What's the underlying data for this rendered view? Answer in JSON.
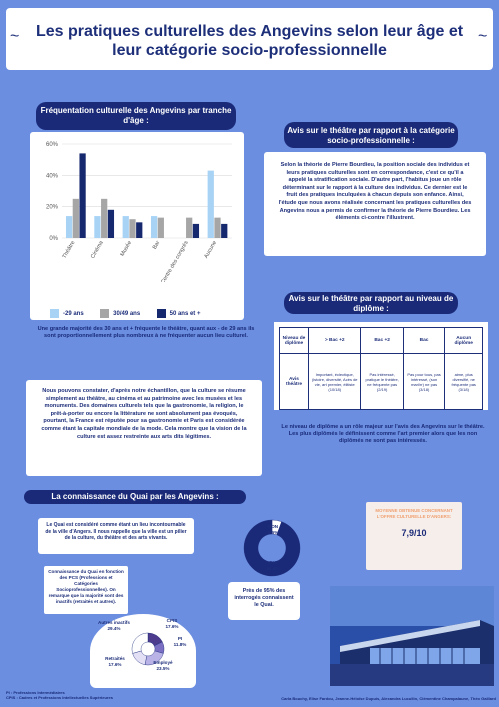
{
  "title": "Les pratiques culturelles des Angevins selon leur âge et leur catégorie socio-professionnelle",
  "freq_section": {
    "title": "Fréquentation culturelle des Angevins par tranche d'âge :",
    "caption": "Une grande majorité des 30 ans et + fréquente le théâtre, quant aux - de 29 ans ils sont proportionnellement plus nombreux à ne fréquenter aucun lieu culturel."
  },
  "chart_data": [
    {
      "type": "bar",
      "categories": [
        "Théâtre",
        "Cinéma",
        "Musée",
        "Bar",
        "Centre des congrès",
        "Aucune"
      ],
      "series": [
        {
          "name": "-29 ans",
          "values": [
            14,
            14,
            14,
            14,
            0,
            43
          ]
        },
        {
          "name": "30/49 ans",
          "values": [
            25,
            25,
            12,
            13,
            13,
            13
          ]
        },
        {
          "name": "50 ans et +",
          "values": [
            54,
            18,
            10,
            0,
            9,
            9
          ]
        }
      ],
      "ylim": [
        0,
        60
      ],
      "yticks": [
        "0%",
        "20%",
        "40%",
        "60%"
      ],
      "colors": [
        "#a9d3f5",
        "#a6a6a6",
        "#16286e"
      ]
    },
    {
      "type": "pie",
      "labels": [
        "NON",
        "OUI"
      ],
      "values": [
        5.6,
        94.4
      ],
      "display": [
        "5.6%",
        "94.4%"
      ],
      "colors": [
        "#ffffff",
        "#1a2a78"
      ]
    },
    {
      "type": "pie",
      "labels": [
        "CPIS",
        "PI",
        "Employé",
        "Retraités",
        "Autres inactifs"
      ],
      "values": [
        17.6,
        11.8,
        23.5,
        17.6,
        29.4
      ],
      "display": [
        "17.6%",
        "11.8%",
        "23.5%",
        "17.6%",
        "29.4%"
      ],
      "colors": [
        "#4d3c8e",
        "#7b6fc4",
        "#b9b2e6",
        "#e3e0f5",
        "#ffffff"
      ]
    }
  ],
  "legend": [
    "-29 ans",
    "30/49 ans",
    "50 ans et +"
  ],
  "theatre_pcs": {
    "title": "Avis sur le théâtre par rapport à la catégorie socio-professionnelle :",
    "text": "Selon la théorie de Pierre Bourdieu, la position sociale des individus et leurs pratiques culturelles sont en correspondance, c'est ce qu'il a appelé la stratification sociale. D'autre part, l'habitus joue un rôle déterminant sur le rapport à la culture des individus. Ce dernier est le fruit des pratiques inculquées à chacun depuis son enfance. Ainsi, l'étude que nous avons réalisée concernant les pratiques culturelles des Angevins nous a permis de confirmer la théorie de Pierre Bourdieu. Les éléments ci-contre l'illustrent."
  },
  "theatre_diploma": {
    "title": "Avis sur le théâtre par rapport au niveau de diplôme :",
    "headers": [
      "Niveau de diplôme",
      "> Bac +2",
      "Bac +2",
      "Bac",
      "Aucun diplôme"
    ],
    "row_label": "Avis théâtre",
    "cells": [
      "Important, éclectique, (istoire, diversité, Acès de vie, art premier, élitiste (10/18)",
      "Pas intéressé, pratique le théâtre, ne fréquente pas (2/19)",
      "Pas pour tous, pas intéressé, (son mari/rr) ne pas (3/18)",
      "aime, plus diversifié, ne fréquente pas (3/18)"
    ],
    "caption": "Le niveau de diplôme a un rôle majeur sur l'avis des Angevins sur le théâtre. Les plus diplômés le définissent comme l'art premier alors que les non diplômés ne sont pas intéressés."
  },
  "conclusion_text": "Nous pouvons constater, d'après notre échantillon, que la culture se résume simplement au théâtre, au cinéma et au patrimoine avec les musées et les monuments. Des domaines culturels tels que la gastronomie, la religion, le prêt-à-porter ou encore la littérature ne sont absolument pas évoqués, pourtant, la France est réputée pour sa gastronomie et Paris est considérée comme étant la capitale mondiale de la mode. Cela montre que la vision de la culture est assez restreinte aux arts dits légitimes.",
  "quai": {
    "title": "La connaissance du Quai par les Angevins :",
    "intro": "Le Quai est considéré comme étant un lieu incontournable de la ville d'Angers. Il nous rappelle que la ville est un pilier de la culture, du théâtre et des arts vivants.",
    "pie_non": "NON",
    "pie_non_val": "5.6%",
    "pie_oui": "OUI",
    "pie_oui_val": "94.4%",
    "pie_caption": "Près de 95% des interrogés connaissent le Quai.",
    "rating_label": "MOYENNE OBTENUE CONCERNANT L'OFFRE CULTURELLE D'ANGERS:",
    "rating_value": "7,9/10",
    "pcs_note": "Connaissance du Quai en fonction des PCS (Professions et Catégories Socioprofessionnelles). On remarque que la majorité sont des inactifs (retraités et autres).",
    "pcs_labels": {
      "autres": "Autres inactifs",
      "autres_val": "29.4%",
      "cpis": "CPIS",
      "cpis_val": "17.6%",
      "pi": "PI",
      "pi_val": "11.8%",
      "retraites": "Retraités",
      "retraites_val": "17.6%",
      "employe": "Employé",
      "employe_val": "23.5%"
    }
  },
  "footnotes": {
    "pi": "PI : Professions Intermédiaires",
    "cpis": "CPIS : Cadres et Professions Intellectuelles Supérieures"
  },
  "authors": "Carla Bouchy, Elise Fardou, Jeanne-Héloïse Dupuis, Alexandra Lucullin, Clémentine Champalaune, Théo Gaillard"
}
